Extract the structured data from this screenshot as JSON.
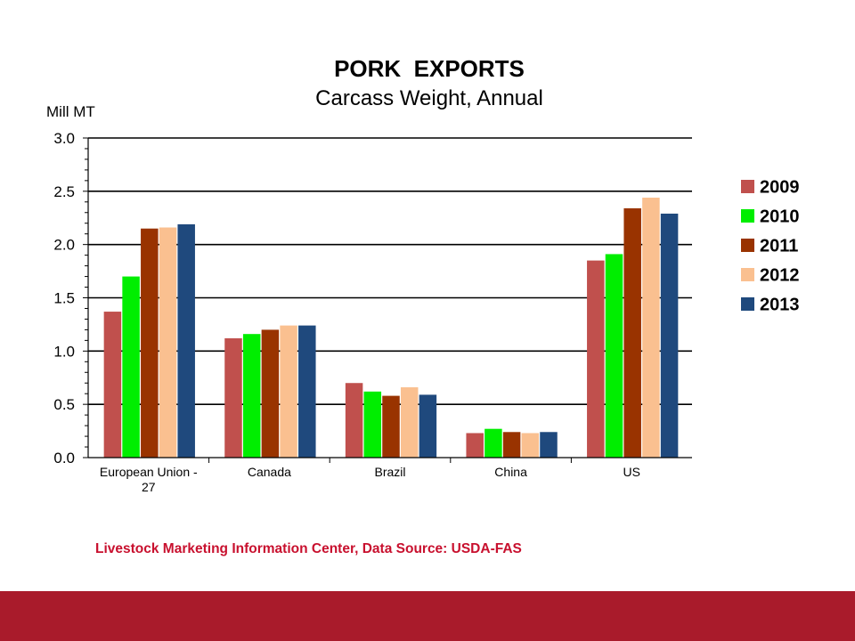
{
  "chart_data": {
    "type": "bar",
    "title": "PORK  EXPORTS",
    "subtitle": "Carcass Weight, Annual",
    "ylabel": "Mill MT",
    "xlabel": "",
    "ylim": [
      0,
      3.0
    ],
    "yticks": [
      "0.0",
      "0.5",
      "1.0",
      "1.5",
      "2.0",
      "2.5",
      "3.0"
    ],
    "ytick_values": [
      0,
      0.5,
      1.0,
      1.5,
      2.0,
      2.5,
      3.0
    ],
    "grid": "horizontal major gridlines",
    "legend_position": "right",
    "categories": [
      [
        "European Union -",
        "27"
      ],
      [
        "Canada"
      ],
      [
        "Brazil"
      ],
      [
        "China"
      ],
      [
        "US"
      ]
    ],
    "series": [
      {
        "name": "2009",
        "color": "#c0504d",
        "values": [
          1.37,
          1.12,
          0.7,
          0.23,
          1.85
        ]
      },
      {
        "name": "2010",
        "color": "#00ee00",
        "values": [
          1.7,
          1.16,
          0.62,
          0.27,
          1.91
        ]
      },
      {
        "name": "2011",
        "color": "#993300",
        "values": [
          2.15,
          1.2,
          0.58,
          0.24,
          2.34
        ]
      },
      {
        "name": "2012",
        "color": "#fac090",
        "values": [
          2.16,
          1.24,
          0.66,
          0.23,
          2.44
        ]
      },
      {
        "name": "2013",
        "color": "#1f497d",
        "values": [
          2.19,
          1.24,
          0.59,
          0.24,
          2.29
        ]
      }
    ]
  },
  "source_text": "Livestock Marketing Information Center, Data Source:  USDA-FAS",
  "colors": {
    "footer_bar": "#a91b2b",
    "source_text": "#c8102e"
  }
}
